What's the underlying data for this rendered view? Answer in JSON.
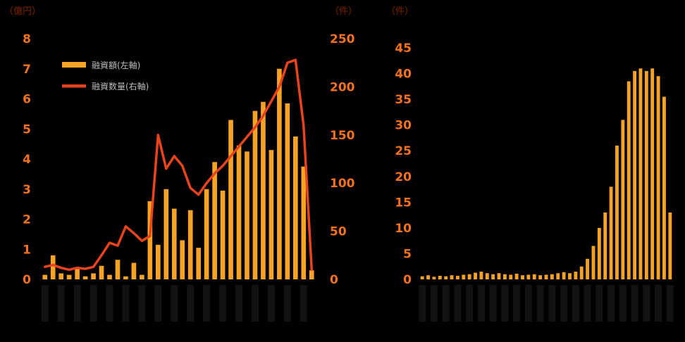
{
  "page": {
    "background": "#000000"
  },
  "chart_data": [
    {
      "id": "left-chart",
      "type": "bar+line",
      "unit_label_left": "（億円）",
      "unit_label_right": "（件）",
      "colors": {
        "bar": "#F6A325",
        "line": "#E8431D",
        "axis_text": "#F47120",
        "legend_text": "#BDBDBD",
        "unit_text": "#551800",
        "x_label_block": "#121212"
      },
      "legend": [
        {
          "label": "融資額(左軸)",
          "series": "bar"
        },
        {
          "label": "融資数量(右軸)",
          "series": "line"
        }
      ],
      "y_axis_left": {
        "min": 0,
        "max": 8,
        "step": 1
      },
      "y_axis_right": {
        "min": 0,
        "max": 250,
        "step": 50
      },
      "x_tick_labels": [],
      "bars": [
        0.15,
        0.8,
        0.2,
        0.15,
        0.35,
        0.1,
        0.2,
        0.45,
        0.15,
        0.65,
        0.1,
        0.55,
        0.15,
        2.6,
        1.15,
        3.0,
        2.35,
        1.3,
        2.3,
        1.05,
        3.0,
        3.9,
        2.95,
        5.3,
        4.45,
        4.25,
        5.6,
        5.9,
        4.3,
        7.0,
        5.85,
        4.75,
        3.75,
        0.3
      ],
      "line": [
        13,
        15,
        12,
        10,
        12,
        11,
        13,
        25,
        38,
        35,
        55,
        48,
        40,
        45,
        150,
        115,
        128,
        118,
        95,
        88,
        100,
        110,
        118,
        128,
        138,
        148,
        158,
        170,
        185,
        200,
        225,
        228,
        160,
        10
      ]
    },
    {
      "id": "right-chart",
      "type": "bar",
      "unit_label_left": "（件）",
      "colors": {
        "bar": "#F6A325",
        "axis_text": "#F47120",
        "unit_text": "#551800",
        "x_label_block": "#121212"
      },
      "y_axis_left": {
        "min": 0,
        "max": 45,
        "step": 5
      },
      "x_tick_labels": [],
      "bars": [
        0.6,
        0.8,
        0.5,
        0.7,
        0.6,
        0.8,
        0.7,
        0.9,
        1.0,
        1.3,
        1.5,
        1.2,
        1.0,
        1.2,
        1.0,
        0.9,
        1.1,
        0.8,
        0.9,
        1.0,
        0.8,
        0.9,
        1.0,
        1.2,
        1.4,
        1.2,
        1.5,
        2.5,
        4.0,
        6.5,
        10.0,
        13.0,
        18.0,
        26.0,
        31.0,
        38.5,
        40.5,
        41.0,
        40.5,
        41.0,
        39.5,
        35.5,
        13.0
      ]
    }
  ]
}
